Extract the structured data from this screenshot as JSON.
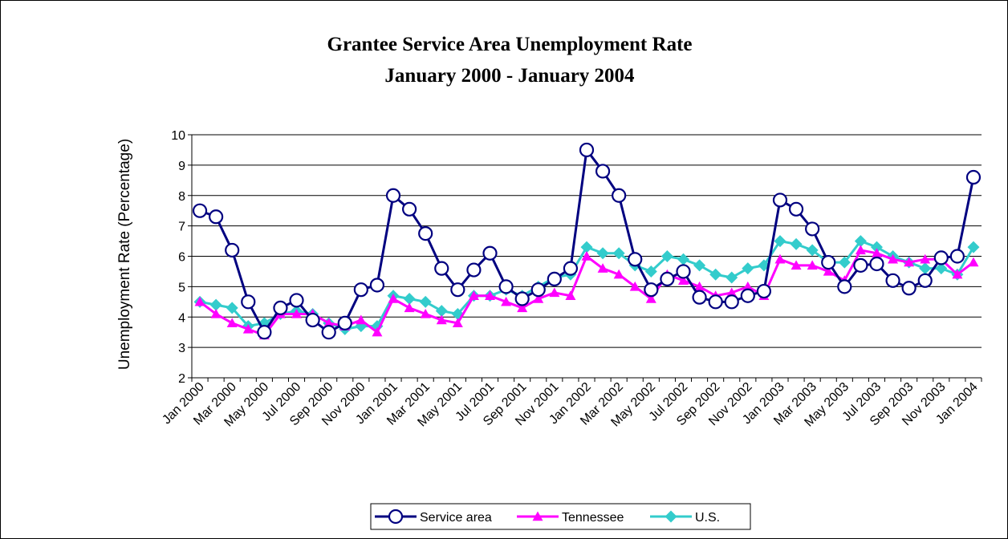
{
  "chart_data": {
    "type": "line",
    "title": "Grantee Service Area Unemployment Rate",
    "subtitle": "January 2000 - January 2004",
    "ylabel": "Unemployment Rate (Percentage)",
    "xlabel": "",
    "ylim": [
      2,
      10
    ],
    "yticks": [
      "2",
      "3",
      "4",
      "5",
      "6",
      "7",
      "8",
      "9",
      "10"
    ],
    "grid": "horizontal",
    "legend_position": "bottom",
    "x_tick_labels": [
      "Jan 2000",
      "Mar 2000",
      "May 2000",
      "Jul 2000",
      "Sep 2000",
      "Nov 2000",
      "Jan 2001",
      "Mar 2001",
      "May 2001",
      "Jul 2001",
      "Sep 2001",
      "Nov 2001",
      "Jan 2002",
      "Mar 2002",
      "May 2002",
      "Jul 2002",
      "Sep 2002",
      "Nov 2002",
      "Jan 2003",
      "Mar 2003",
      "May 2003",
      "Jul 2003",
      "Sep 2003",
      "Nov 2003",
      "Jan 2004"
    ],
    "categories": [
      "Jan 2000",
      "Feb 2000",
      "Mar 2000",
      "Apr 2000",
      "May 2000",
      "Jun 2000",
      "Jul 2000",
      "Aug 2000",
      "Sep 2000",
      "Oct 2000",
      "Nov 2000",
      "Dec 2000",
      "Jan 2001",
      "Feb 2001",
      "Mar 2001",
      "Apr 2001",
      "May 2001",
      "Jun 2001",
      "Jul 2001",
      "Aug 2001",
      "Sep 2001",
      "Oct 2001",
      "Nov 2001",
      "Dec 2001",
      "Jan 2002",
      "Feb 2002",
      "Mar 2002",
      "Apr 2002",
      "May 2002",
      "Jun 2002",
      "Jul 2002",
      "Aug 2002",
      "Sep 2002",
      "Oct 2002",
      "Nov 2002",
      "Dec 2002",
      "Jan 2003",
      "Feb 2003",
      "Mar 2003",
      "Apr 2003",
      "May 2003",
      "Jun 2003",
      "Jul 2003",
      "Aug 2003",
      "Sep 2003",
      "Oct 2003",
      "Nov 2003",
      "Dec 2003",
      "Jan 2004"
    ],
    "series": [
      {
        "name": "Service area",
        "color": "#000080",
        "marker": "circle",
        "values": [
          7.5,
          7.3,
          6.2,
          4.5,
          3.5,
          4.3,
          4.55,
          3.9,
          3.5,
          3.8,
          4.9,
          5.05,
          8.0,
          7.55,
          6.75,
          5.6,
          4.9,
          5.55,
          6.1,
          5.0,
          4.6,
          4.9,
          5.25,
          5.6,
          9.5,
          8.8,
          8.0,
          5.9,
          4.9,
          5.25,
          5.5,
          4.65,
          4.5,
          4.5,
          4.7,
          4.85,
          7.85,
          7.55,
          6.9,
          5.8,
          5.0,
          5.7,
          5.75,
          5.2,
          4.95,
          5.2,
          5.95,
          6.0,
          8.6
        ]
      },
      {
        "name": "Tennessee",
        "color": "#ff00ff",
        "marker": "triangle",
        "values": [
          4.5,
          4.1,
          3.8,
          3.6,
          3.4,
          4.1,
          4.1,
          4.1,
          3.8,
          3.7,
          3.9,
          3.5,
          4.6,
          4.3,
          4.1,
          3.9,
          3.8,
          4.7,
          4.7,
          4.5,
          4.3,
          4.6,
          4.8,
          4.7,
          6.0,
          5.6,
          5.4,
          5.0,
          4.6,
          5.4,
          5.2,
          5.0,
          4.7,
          4.8,
          5.0,
          4.7,
          5.9,
          5.7,
          5.7,
          5.5,
          5.2,
          6.2,
          6.1,
          5.9,
          5.8,
          5.9,
          5.9,
          5.4,
          5.8
        ]
      },
      {
        "name": "U.S.",
        "color": "#33cccc",
        "marker": "diamond",
        "values": [
          4.5,
          4.4,
          4.3,
          3.7,
          3.8,
          4.1,
          4.2,
          4.1,
          3.8,
          3.6,
          3.7,
          3.7,
          4.7,
          4.6,
          4.5,
          4.2,
          4.1,
          4.7,
          4.7,
          4.9,
          4.7,
          5.0,
          5.3,
          5.4,
          6.3,
          6.1,
          6.1,
          5.7,
          5.5,
          6.0,
          5.9,
          5.7,
          5.4,
          5.3,
          5.6,
          5.7,
          6.5,
          6.4,
          6.2,
          5.8,
          5.8,
          6.5,
          6.3,
          6.0,
          5.8,
          5.6,
          5.6,
          5.4,
          6.3
        ]
      }
    ]
  }
}
